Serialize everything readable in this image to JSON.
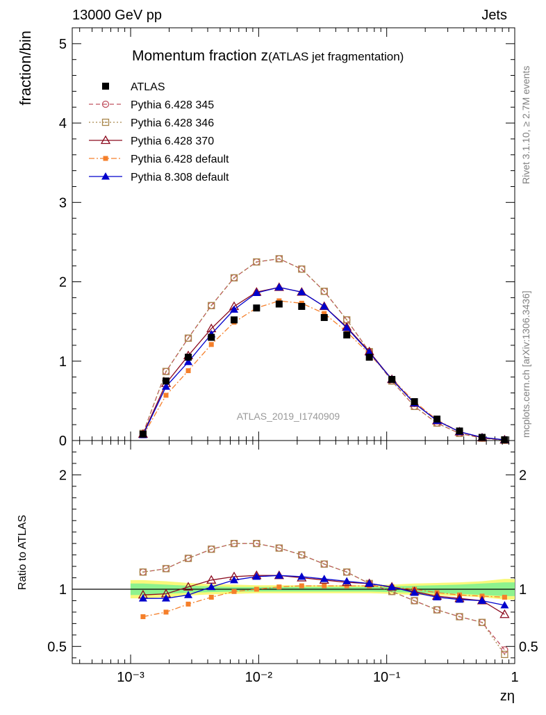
{
  "header": {
    "left": "13000 GeV pp",
    "right": "Jets"
  },
  "side_labels": {
    "rivet": "Rivet 3.1.10, ≥ 2.7M events",
    "mcplots": "mcplots.cern.ch [arXiv:1306.3436]"
  },
  "colors": {
    "atlas": "#000000",
    "p345": "#c0505f",
    "p346": "#a8864a",
    "p370": "#8b0a1e",
    "p6def": "#f57f2a",
    "p8def": "#0000cc",
    "band_green": "#8ef28e",
    "band_yellow": "#f8f87a"
  },
  "chart_data": [
    {
      "type": "line",
      "title_main": "Momentum fraction z",
      "title_sub": "(ATLAS jet fragmentation)",
      "ylabel": "fraction/bin",
      "xscale": "log",
      "xlim": [
        0.00035,
        1.0
      ],
      "ylim": [
        0,
        5.2
      ],
      "yticks": [
        "0",
        "1",
        "2",
        "3",
        "4",
        "5"
      ],
      "watermark": "ATLAS_2019_I1740909",
      "legend_position": "top-left",
      "x": [
        0.00125,
        0.00189,
        0.00282,
        0.00427,
        0.00643,
        0.00963,
        0.01445,
        0.02168,
        0.03252,
        0.04878,
        0.07317,
        0.10976,
        0.16464,
        0.24696,
        0.37044,
        0.55566,
        0.83349
      ],
      "series": [
        {
          "name": "ATLAS",
          "key": "atlas",
          "style": "points",
          "values": [
            0.08,
            0.75,
            1.05,
            1.3,
            1.52,
            1.67,
            1.72,
            1.69,
            1.55,
            1.33,
            1.05,
            0.77,
            0.49,
            0.27,
            0.12,
            0.04,
            0.01
          ]
        },
        {
          "name": "Pythia 6.428 345",
          "key": "p345",
          "style": "dashed",
          "values": [
            0.09,
            0.87,
            1.29,
            1.7,
            2.05,
            2.25,
            2.29,
            2.16,
            1.88,
            1.52,
            1.12,
            0.75,
            0.43,
            0.22,
            0.09,
            0.03,
            0.004
          ]
        },
        {
          "name": "Pythia 6.428 346",
          "key": "p346",
          "style": "dotted",
          "values": [
            0.09,
            0.87,
            1.29,
            1.7,
            2.05,
            2.25,
            2.29,
            2.16,
            1.88,
            1.52,
            1.12,
            0.75,
            0.43,
            0.22,
            0.09,
            0.03,
            0.004
          ]
        },
        {
          "name": "Pythia 6.428 370",
          "key": "p370",
          "style": "solid",
          "values": [
            0.08,
            0.72,
            1.07,
            1.41,
            1.69,
            1.87,
            1.93,
            1.87,
            1.69,
            1.43,
            1.12,
            0.77,
            0.47,
            0.25,
            0.11,
            0.035,
            0.008
          ]
        },
        {
          "name": "Pythia 6.428 default",
          "key": "p6def",
          "style": "dashdot",
          "values": [
            0.06,
            0.57,
            0.88,
            1.21,
            1.49,
            1.67,
            1.76,
            1.73,
            1.6,
            1.37,
            1.09,
            0.78,
            0.49,
            0.26,
            0.11,
            0.04,
            0.009
          ]
        },
        {
          "name": "Pythia 8.308 default",
          "key": "p8def",
          "style": "solid",
          "values": [
            0.07,
            0.68,
            0.99,
            1.34,
            1.65,
            1.86,
            1.93,
            1.87,
            1.69,
            1.42,
            1.11,
            0.77,
            0.47,
            0.25,
            0.11,
            0.04,
            0.009
          ]
        }
      ]
    },
    {
      "type": "line",
      "ylabel": "Ratio to ATLAS",
      "xlabel": "zη",
      "xscale": "log",
      "xlim": [
        0.00035,
        1.0
      ],
      "ylim": [
        0.35,
        2.3
      ],
      "yticks": [
        "0.5",
        "1",
        "2"
      ],
      "xticks": [
        "10⁻³",
        "10⁻²",
        "10⁻¹",
        "1"
      ],
      "x": [
        0.00125,
        0.00189,
        0.00282,
        0.00427,
        0.00643,
        0.00963,
        0.01445,
        0.02168,
        0.03252,
        0.04878,
        0.07317,
        0.10976,
        0.16464,
        0.24696,
        0.37044,
        0.55566,
        0.83349
      ],
      "band_inner": [
        0.05,
        0.04,
        0.03,
        0.025,
        0.02,
        0.02,
        0.02,
        0.02,
        0.02,
        0.02,
        0.02,
        0.025,
        0.03,
        0.035,
        0.04,
        0.05,
        0.06
      ],
      "band_outer": [
        0.08,
        0.07,
        0.055,
        0.045,
        0.04,
        0.035,
        0.035,
        0.035,
        0.035,
        0.035,
        0.035,
        0.04,
        0.05,
        0.055,
        0.06,
        0.07,
        0.09
      ],
      "series": [
        {
          "name": "Pythia 6.428 345",
          "key": "p345",
          "style": "dashed",
          "values": [
            1.15,
            1.18,
            1.27,
            1.35,
            1.4,
            1.4,
            1.36,
            1.3,
            1.22,
            1.15,
            1.05,
            0.98,
            0.9,
            0.82,
            0.76,
            0.71,
            0.47
          ]
        },
        {
          "name": "Pythia 6.428 346",
          "key": "p346",
          "style": "dotted",
          "values": [
            1.15,
            1.18,
            1.27,
            1.35,
            1.4,
            1.4,
            1.36,
            1.3,
            1.22,
            1.15,
            1.05,
            0.98,
            0.9,
            0.82,
            0.76,
            0.71,
            0.43
          ]
        },
        {
          "name": "Pythia 6.428 370",
          "key": "p370",
          "style": "solid",
          "values": [
            0.95,
            0.96,
            1.02,
            1.08,
            1.11,
            1.12,
            1.12,
            1.1,
            1.08,
            1.06,
            1.05,
            1.02,
            0.98,
            0.94,
            0.92,
            0.9,
            0.78
          ]
        },
        {
          "name": "Pythia 6.428 default",
          "key": "p6def",
          "style": "dashdot",
          "values": [
            0.76,
            0.8,
            0.87,
            0.93,
            0.98,
            1.0,
            1.02,
            1.03,
            1.03,
            1.03,
            1.03,
            1.02,
            1.0,
            0.97,
            0.95,
            0.94,
            0.93
          ]
        },
        {
          "name": "Pythia 8.308 default",
          "key": "p8def",
          "style": "solid",
          "values": [
            0.92,
            0.92,
            0.95,
            1.02,
            1.08,
            1.11,
            1.12,
            1.11,
            1.09,
            1.07,
            1.05,
            1.02,
            0.97,
            0.93,
            0.91,
            0.9,
            0.86
          ]
        }
      ]
    }
  ]
}
